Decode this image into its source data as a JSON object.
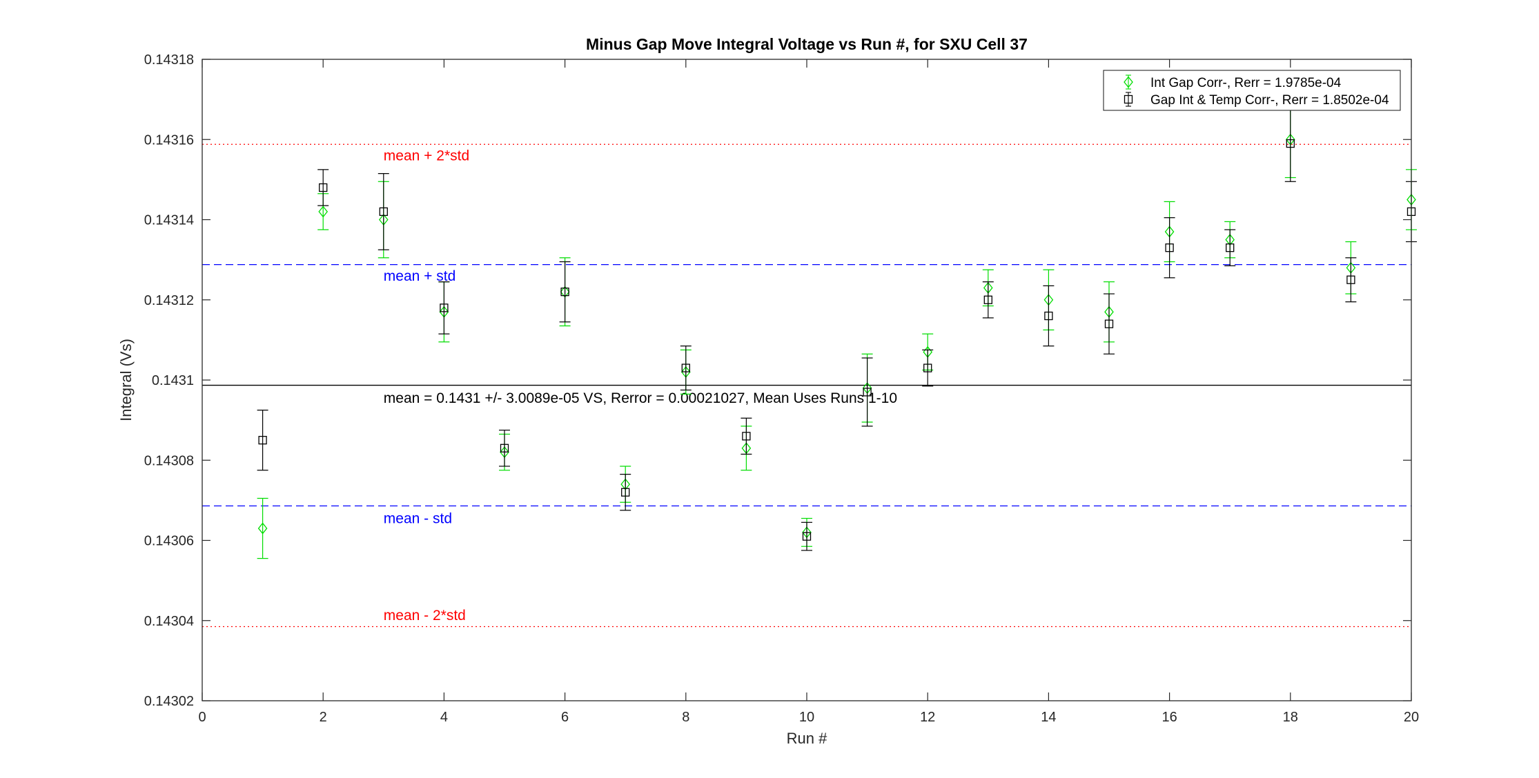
{
  "chart_data": {
    "type": "scatter",
    "title": "Minus Gap Move Integral Voltage vs Run #, for SXU Cell 37",
    "xlabel": "Run #",
    "ylabel": "Integral (Vs)",
    "xlim": [
      0,
      20
    ],
    "ylim": [
      0.14302,
      0.14318
    ],
    "xticks": [
      0,
      2,
      4,
      6,
      8,
      10,
      12,
      14,
      16,
      18,
      20
    ],
    "xtick_labels": [
      "0",
      "2",
      "4",
      "6",
      "8",
      "10",
      "12",
      "14",
      "16",
      "18",
      "20"
    ],
    "yticks": [
      0.14302,
      0.14304,
      0.14306,
      0.14308,
      0.1431,
      0.14312,
      0.14314,
      0.14316,
      0.14318
    ],
    "ytick_labels": [
      "0.14302",
      "0.14304",
      "0.14306",
      "0.14308",
      "0.1431",
      "0.14312",
      "0.14314",
      "0.14316",
      "0.14318"
    ],
    "grid": false,
    "legend_position": "top-right",
    "series": [
      {
        "name": "Int Gap Corr-, Rerr = 1.9785e-04",
        "color": "#00dd00",
        "marker": "diamond",
        "x": [
          1,
          2,
          3,
          4,
          5,
          6,
          7,
          8,
          9,
          10,
          11,
          12,
          13,
          14,
          15,
          16,
          17,
          18,
          19,
          20
        ],
        "y": [
          0.143063,
          0.143142,
          0.14314,
          0.143117,
          0.143082,
          0.143122,
          0.143074,
          0.143102,
          0.143083,
          0.143062,
          0.143098,
          0.143107,
          0.143123,
          0.14312,
          0.143117,
          0.143137,
          0.143135,
          0.14316,
          0.143128,
          0.143145
        ],
        "err": [
          7.5e-06,
          4.5e-06,
          9.5e-06,
          7.5e-06,
          4.5e-06,
          8.5e-06,
          4.5e-06,
          5.5e-06,
          5.5e-06,
          3.5e-06,
          8.5e-06,
          4.5e-06,
          4.5e-06,
          7.5e-06,
          7.5e-06,
          7.5e-06,
          4.5e-06,
          9.5e-06,
          6.5e-06,
          7.5e-06
        ]
      },
      {
        "name": "Gap Int & Temp Corr-, Rerr = 1.8502e-04",
        "color": "#000000",
        "marker": "square",
        "x": [
          1,
          2,
          3,
          4,
          5,
          6,
          7,
          8,
          9,
          10,
          11,
          12,
          13,
          14,
          15,
          16,
          17,
          18,
          19,
          20
        ],
        "y": [
          0.143085,
          0.143148,
          0.143142,
          0.143118,
          0.143083,
          0.143122,
          0.143072,
          0.143103,
          0.143086,
          0.143061,
          0.143097,
          0.143103,
          0.14312,
          0.143116,
          0.143114,
          0.143133,
          0.143133,
          0.143159,
          0.143125,
          0.143142
        ],
        "err": [
          7.5e-06,
          4.5e-06,
          9.5e-06,
          6.5e-06,
          4.5e-06,
          7.5e-06,
          4.5e-06,
          5.5e-06,
          4.5e-06,
          3.5e-06,
          8.5e-06,
          4.5e-06,
          4.5e-06,
          7.5e-06,
          7.5e-06,
          7.5e-06,
          4.5e-06,
          9.5e-06,
          5.5e-06,
          7.5e-06
        ]
      }
    ],
    "reference_lines": [
      {
        "y": 0.1431588,
        "style": "dotted",
        "color": "#ff0000",
        "label": "mean + 2*std",
        "label_x": 3,
        "label_y": 0.143156
      },
      {
        "y": 0.1431288,
        "style": "dashed",
        "color": "#0000ff",
        "label": "mean + std",
        "label_x": 3,
        "label_y": 0.143126
      },
      {
        "y": 0.1430987,
        "style": "solid",
        "color": "#000000",
        "label": "mean = 0.1431 +/- 3.0089e-05 VS, Rerror = 0.00021027, Mean Uses Runs 1-10",
        "label_x": 3,
        "label_y": 0.1430955
      },
      {
        "y": 0.1430686,
        "style": "dashed",
        "color": "#0000ff",
        "label": "mean - std",
        "label_x": 3,
        "label_y": 0.1430655
      },
      {
        "y": 0.1430385,
        "style": "dotted",
        "color": "#ff0000",
        "label": "mean - 2*std",
        "label_x": 3,
        "label_y": 0.1430413
      }
    ]
  }
}
